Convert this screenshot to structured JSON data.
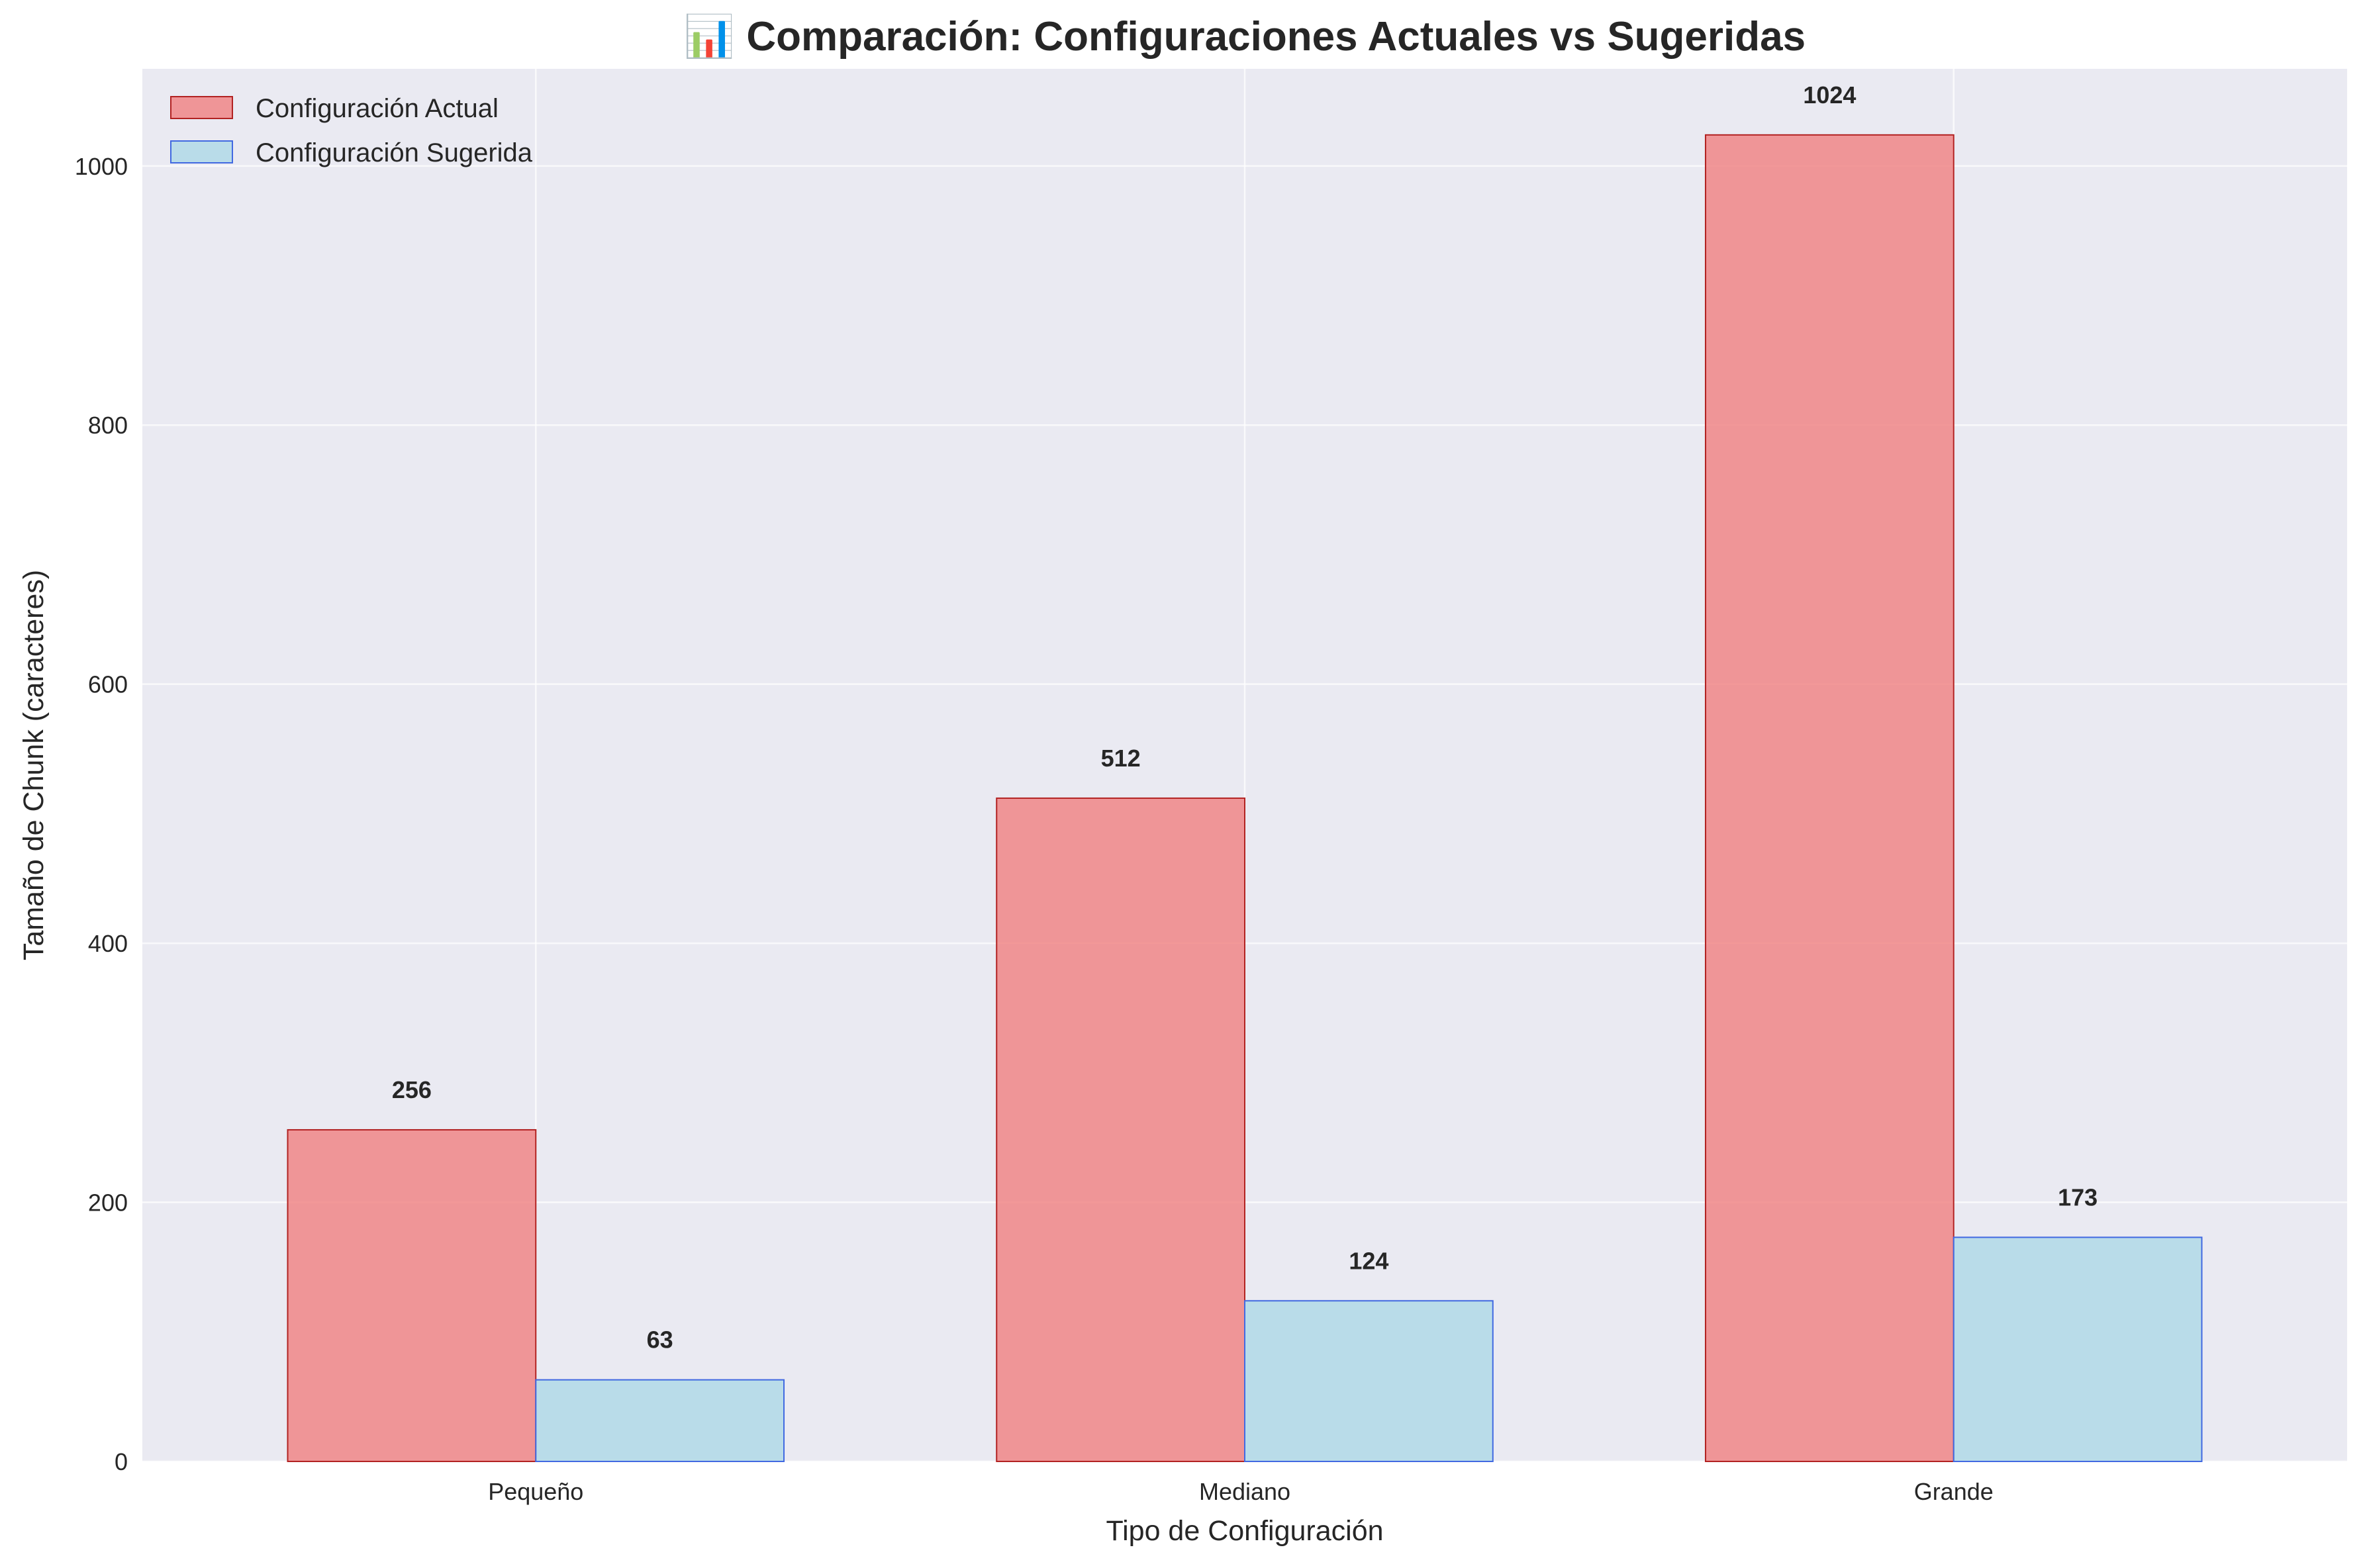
{
  "chart_data": {
    "type": "bar",
    "title": "📊 Comparación: Configuraciones Actuales vs Sugeridas",
    "xlabel": "Tipo de Configuración",
    "ylabel": "Tamaño de Chunk (caracteres)",
    "categories": [
      "Pequeño",
      "Mediano",
      "Grande"
    ],
    "series": [
      {
        "name": "Configuración Actual",
        "values": [
          256,
          512,
          1024
        ],
        "color": "#f08080",
        "edge": "#b22222"
      },
      {
        "name": "Configuración Sugerida",
        "values": [
          63,
          124,
          173
        ],
        "color": "#add8e6",
        "edge": "#4169e1"
      }
    ],
    "ylim": [
      0,
      1075
    ],
    "yticks": [
      0,
      200,
      400,
      600,
      800,
      1000
    ],
    "grid": true,
    "legend": "top-left",
    "background": "#eaeaf2"
  }
}
